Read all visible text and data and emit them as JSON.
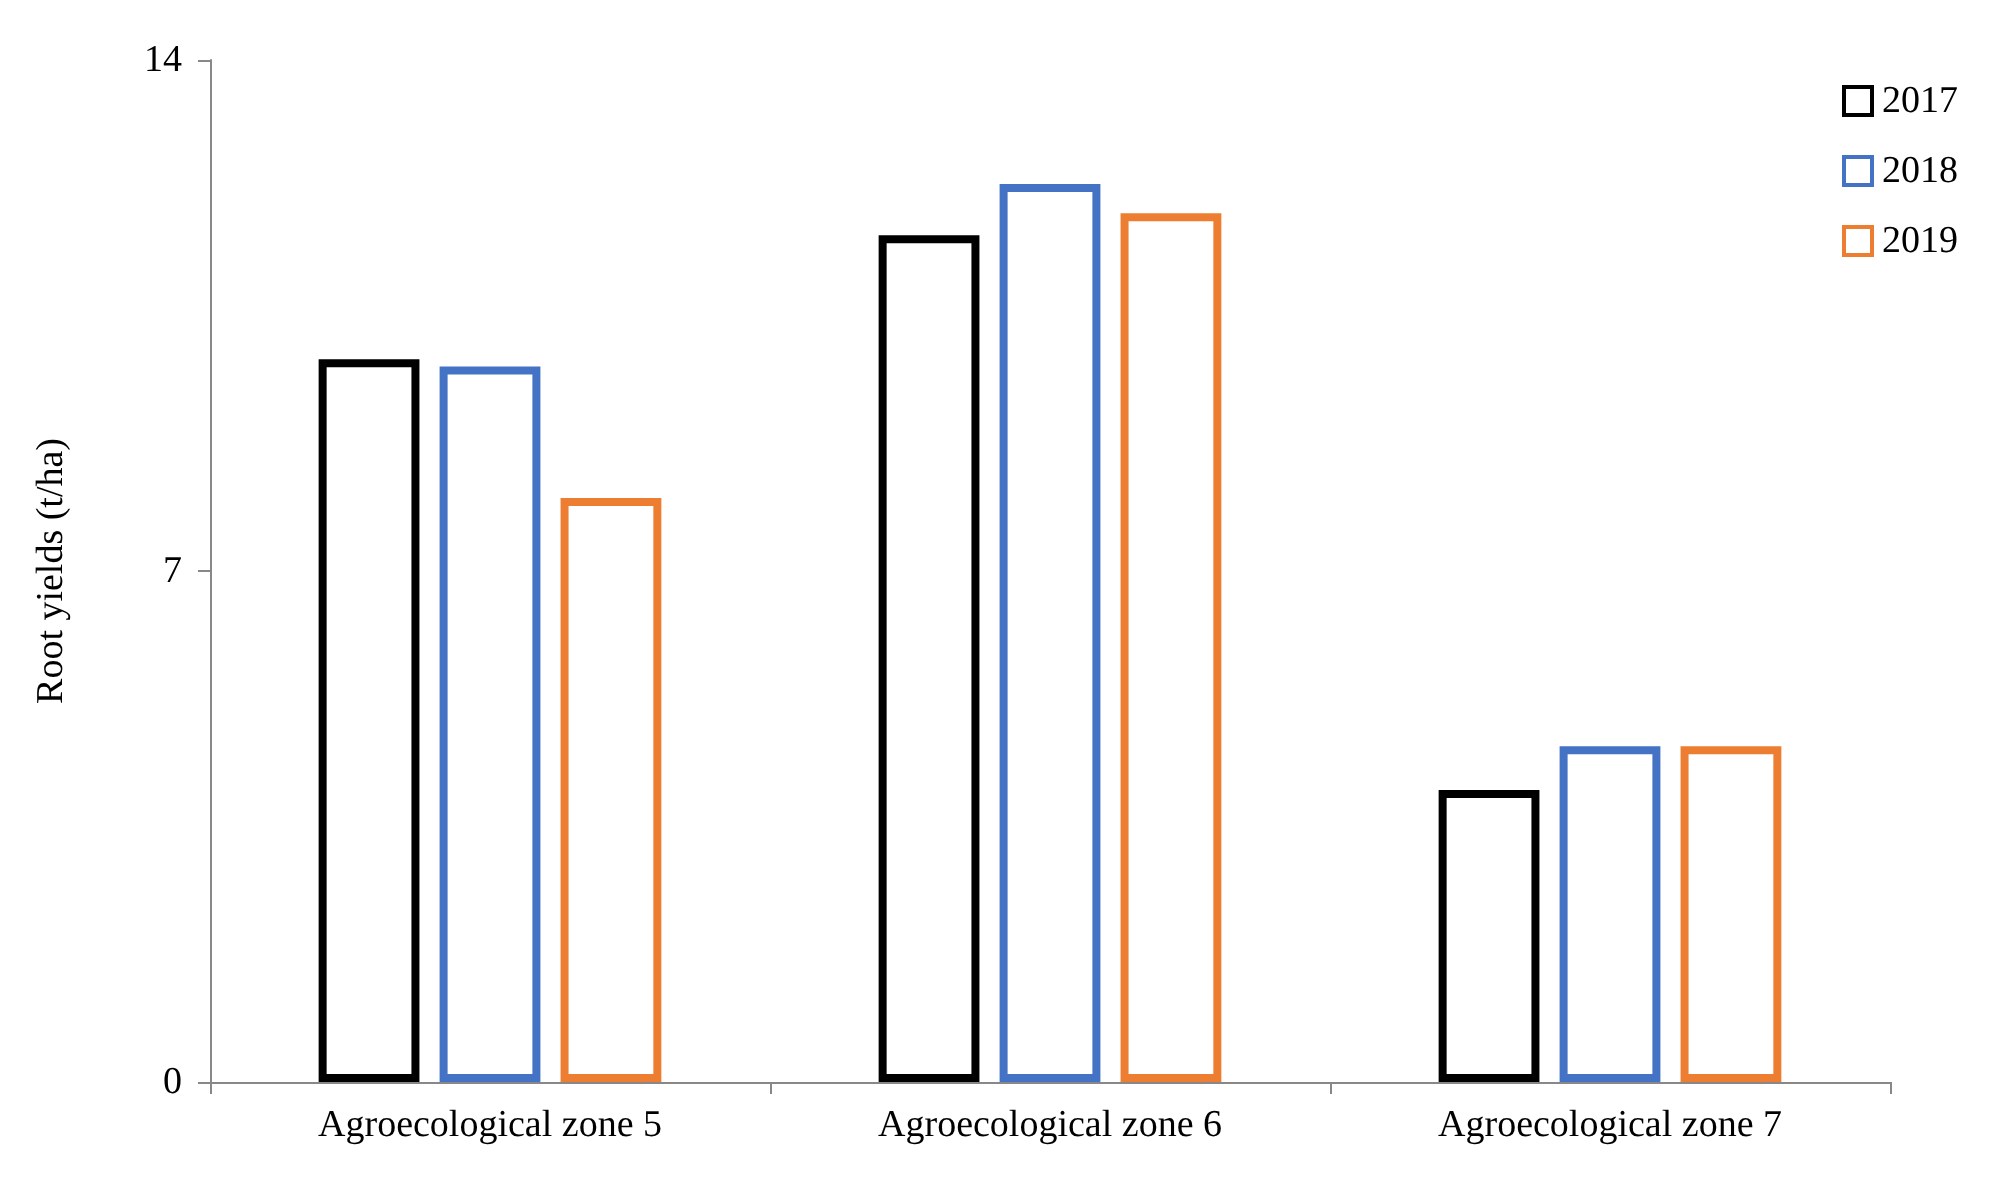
{
  "chart_data": {
    "type": "bar",
    "ylabel": "Root yields (t/ha)",
    "categories": [
      "Agroecological zone 5",
      "Agroecological zone 6",
      "Agroecological zone 7"
    ],
    "series": [
      {
        "name": "2017",
        "color": "#000000",
        "values": [
          9.9,
          11.6,
          4.0
        ]
      },
      {
        "name": "2018",
        "color": "#4472c4",
        "values": [
          9.8,
          12.3,
          4.6
        ]
      },
      {
        "name": "2019",
        "color": "#ed7d31",
        "values": [
          8.0,
          11.9,
          4.6
        ]
      }
    ],
    "ylim": [
      0,
      14
    ],
    "yticks": [
      0,
      7,
      14
    ],
    "grid": false,
    "legend": "top right"
  }
}
